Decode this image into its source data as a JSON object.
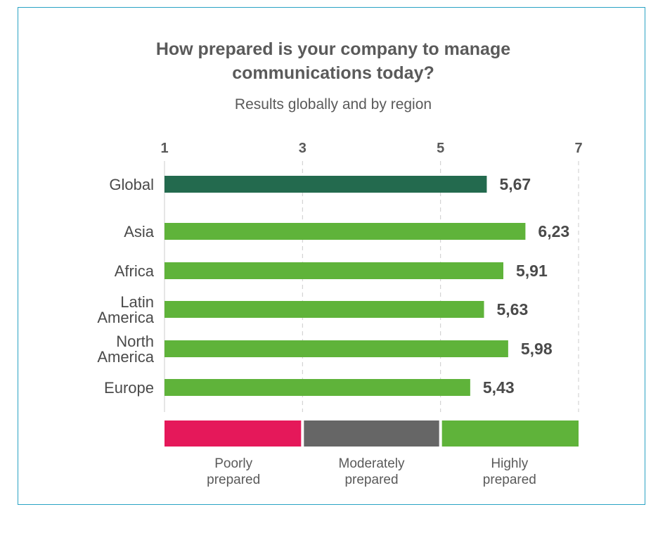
{
  "chart_data": {
    "type": "bar",
    "orientation": "horizontal",
    "title": [
      "How prepared is your company to manage",
      "communications today?"
    ],
    "subtitle": "Results globally and by region",
    "xlim": [
      1,
      7
    ],
    "xticks": [
      "1",
      "3",
      "5",
      "7"
    ],
    "grid": true,
    "categories": [
      {
        "lines": [
          "Global"
        ],
        "value": 5.67,
        "label": "5,67",
        "color": "#236a4e"
      },
      {
        "lines": [
          "Asia"
        ],
        "value": 6.23,
        "label": "6,23",
        "color": "#5fb33a"
      },
      {
        "lines": [
          "Africa"
        ],
        "value": 5.91,
        "label": "5,91",
        "color": "#5fb33a"
      },
      {
        "lines": [
          "Latin",
          "America"
        ],
        "value": 5.63,
        "label": "5,63",
        "color": "#5fb33a"
      },
      {
        "lines": [
          "North",
          "America"
        ],
        "value": 5.98,
        "label": "5,98",
        "color": "#5fb33a"
      },
      {
        "lines": [
          "Europe"
        ],
        "value": 5.43,
        "label": "5,43",
        "color": "#5fb33a"
      }
    ],
    "bands": [
      {
        "from": 1,
        "to": 3,
        "color": "#e5185a",
        "lines": [
          "Poorly",
          "prepared"
        ]
      },
      {
        "from": 3,
        "to": 5,
        "color": "#666666",
        "lines": [
          "Moderately",
          "prepared"
        ]
      },
      {
        "from": 5,
        "to": 7,
        "color": "#5fb33a",
        "lines": [
          "Highly",
          "prepared"
        ]
      }
    ]
  }
}
